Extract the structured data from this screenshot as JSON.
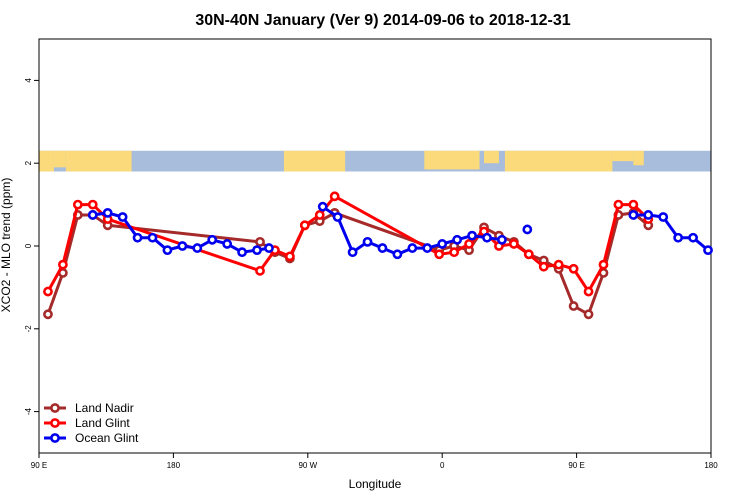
{
  "chart_data": {
    "type": "line",
    "title": "30N-40N January (Ver 9)   2014-09-06 to 2018-12-31",
    "xlabel": "Longitude",
    "ylabel": "XCO2 - MLO trend (ppm)",
    "xlim": [
      90,
      540
    ],
    "ylim": [
      -5,
      5
    ],
    "x_ticks": [
      {
        "value": 90,
        "label": "90 E"
      },
      {
        "value": 180,
        "label": "180"
      },
      {
        "value": 270,
        "label": "90 W"
      },
      {
        "value": 360,
        "label": "0"
      },
      {
        "value": 450,
        "label": "90 E"
      },
      {
        "value": 540,
        "label": "180"
      }
    ],
    "y_ticks": [
      {
        "value": -4,
        "label": "-4"
      },
      {
        "value": -2,
        "label": "-2"
      },
      {
        "value": 0,
        "label": "0"
      },
      {
        "value": 2,
        "label": "2"
      },
      {
        "value": 4,
        "label": "4"
      }
    ],
    "map_band": {
      "y_min": 1.8,
      "y_max": 2.3,
      "ocean_color": "#a8bcdc",
      "land_color": "#fada7a"
    },
    "legend_position": "bottom-left",
    "series": [
      {
        "name": "Land Nadir",
        "color": "#a52a2a",
        "points": [
          [
            96,
            -1.65
          ],
          [
            106,
            -0.65
          ],
          [
            116,
            0.75
          ],
          [
            126,
            0.75
          ],
          [
            136,
            0.5
          ],
          [
            238,
            0.1
          ],
          [
            248,
            -0.15
          ],
          [
            258,
            -0.3
          ],
          [
            268,
            0.5
          ],
          [
            278,
            0.6
          ],
          [
            288,
            0.8
          ],
          [
            358,
            -0.1
          ],
          [
            368,
            0.0
          ],
          [
            378,
            -0.1
          ],
          [
            388,
            0.45
          ],
          [
            398,
            0.25
          ],
          [
            408,
            0.1
          ],
          [
            418,
            -0.2
          ],
          [
            428,
            -0.35
          ],
          [
            438,
            -0.55
          ],
          [
            448,
            -1.45
          ],
          [
            458,
            -1.65
          ],
          [
            468,
            -0.65
          ],
          [
            478,
            0.75
          ],
          [
            488,
            0.8
          ],
          [
            498,
            0.5
          ]
        ]
      },
      {
        "name": "Land Glint",
        "color": "#ff0000",
        "points": [
          [
            96,
            -1.1
          ],
          [
            106,
            -0.45
          ],
          [
            116,
            1.0
          ],
          [
            126,
            1.0
          ],
          [
            136,
            0.65
          ],
          [
            238,
            -0.6
          ],
          [
            248,
            -0.1
          ],
          [
            258,
            -0.25
          ],
          [
            268,
            0.5
          ],
          [
            278,
            0.75
          ],
          [
            288,
            1.2
          ],
          [
            358,
            -0.2
          ],
          [
            368,
            -0.15
          ],
          [
            378,
            0.05
          ],
          [
            388,
            0.35
          ],
          [
            398,
            0.0
          ],
          [
            408,
            0.05
          ],
          [
            418,
            -0.2
          ],
          [
            428,
            -0.5
          ],
          [
            438,
            -0.45
          ],
          [
            448,
            -0.55
          ],
          [
            458,
            -1.1
          ],
          [
            468,
            -0.45
          ],
          [
            478,
            1.0
          ],
          [
            488,
            1.0
          ],
          [
            498,
            0.65
          ]
        ]
      },
      {
        "name": "Ocean Glint",
        "color": "#0000ee",
        "segments": [
          [
            [
              126,
              0.75
            ],
            [
              136,
              0.8
            ],
            [
              146,
              0.7
            ],
            [
              156,
              0.2
            ],
            [
              166,
              0.2
            ],
            [
              176,
              -0.1
            ],
            [
              186,
              0.0
            ],
            [
              196,
              -0.05
            ],
            [
              206,
              0.15
            ],
            [
              216,
              0.05
            ],
            [
              226,
              -0.15
            ],
            [
              236,
              -0.1
            ],
            [
              244,
              -0.05
            ]
          ],
          [
            [
              280,
              0.95
            ],
            [
              290,
              0.7
            ],
            [
              300,
              -0.15
            ],
            [
              310,
              0.1
            ],
            [
              320,
              -0.05
            ],
            [
              330,
              -0.2
            ],
            [
              340,
              -0.05
            ],
            [
              350,
              -0.05
            ],
            [
              360,
              0.05
            ],
            [
              370,
              0.15
            ],
            [
              380,
              0.25
            ],
            [
              390,
              0.2
            ],
            [
              400,
              0.15
            ]
          ],
          [
            [
              417,
              0.4
            ]
          ],
          [
            [
              488,
              0.75
            ],
            [
              498,
              0.75
            ],
            [
              508,
              0.7
            ],
            [
              518,
              0.2
            ],
            [
              528,
              0.2
            ],
            [
              538,
              -0.1
            ]
          ]
        ]
      }
    ]
  }
}
